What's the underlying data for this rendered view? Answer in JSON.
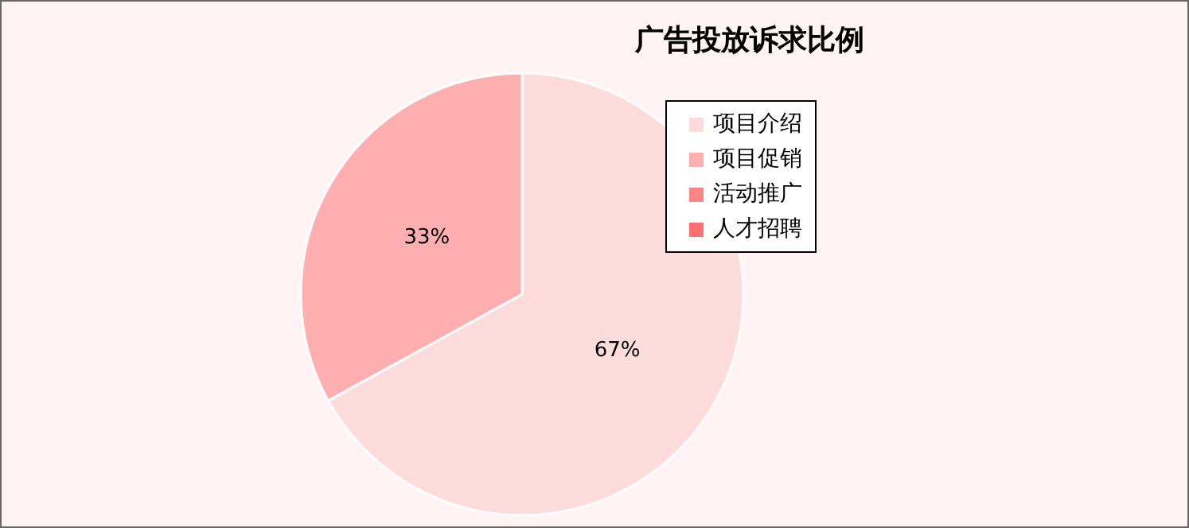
{
  "chart_data": {
    "type": "pie",
    "title": "广告投放诉求比例",
    "categories": [
      "项目介绍",
      "项目促销",
      "活动推广",
      "人才招聘"
    ],
    "values": [
      67,
      33,
      0,
      0
    ],
    "colors": [
      "#ffdcdc",
      "#ffafaf",
      "#ff8585",
      "#ff7070"
    ],
    "value_labels": [
      "67%",
      "33%",
      null,
      null
    ],
    "legend": "top right"
  }
}
